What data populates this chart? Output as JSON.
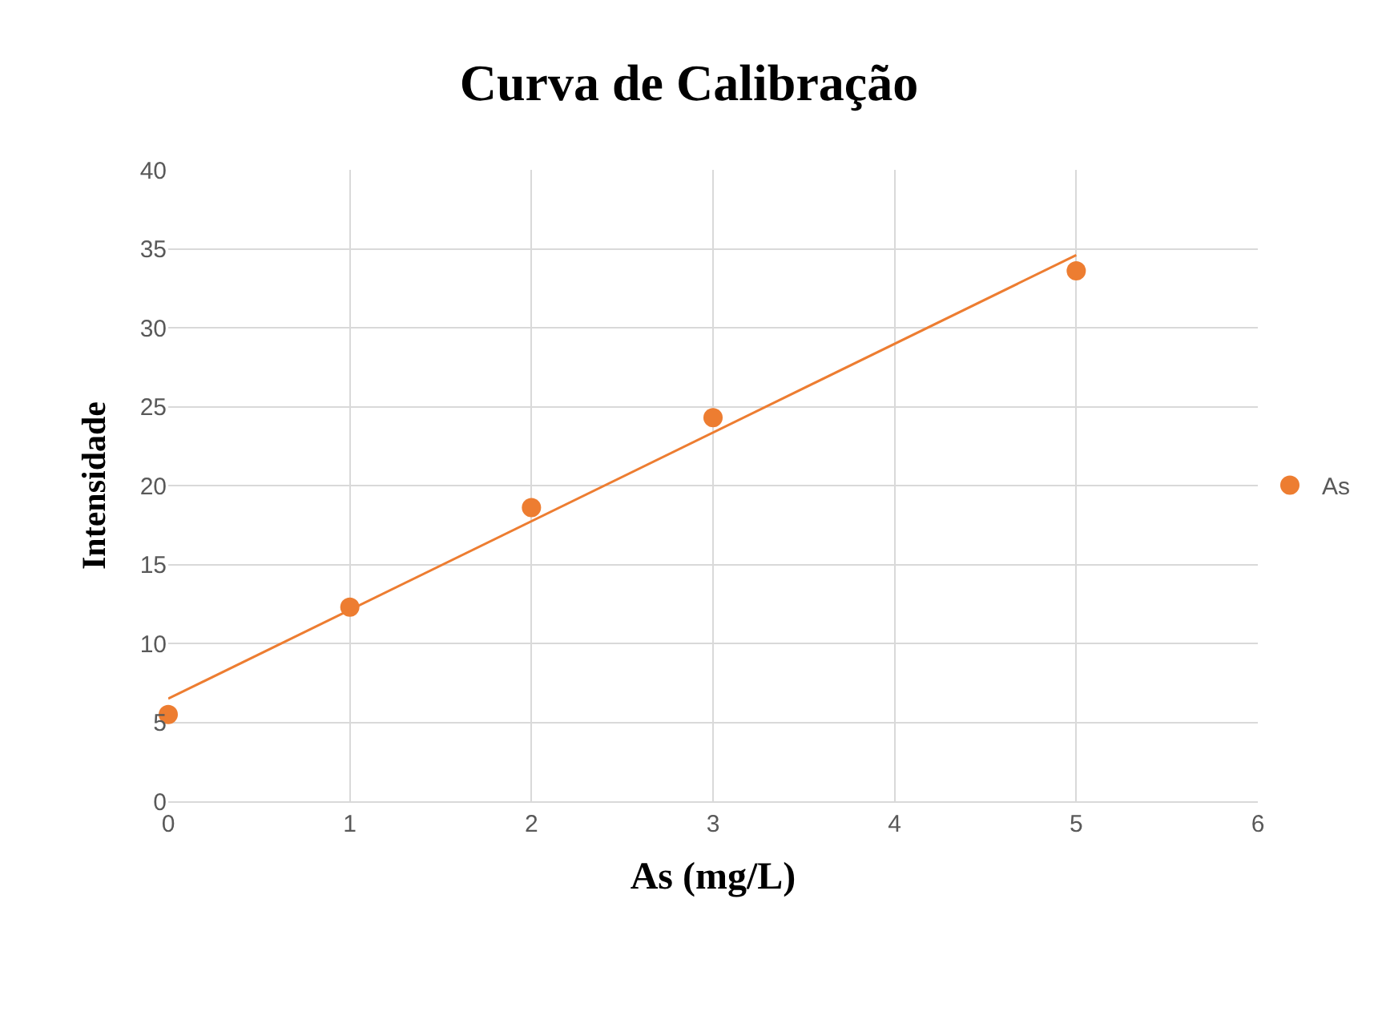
{
  "chart_data": {
    "type": "scatter",
    "title": "Curva de Calibração",
    "xlabel": "As (mg/L)",
    "ylabel": "Intensidade",
    "series": [
      {
        "name": "As",
        "color": "#ed7d31",
        "marker": "circle",
        "x": [
          0,
          1,
          2,
          3,
          5
        ],
        "values": [
          5.5,
          12.3,
          18.6,
          24.3,
          33.6
        ]
      },
      {
        "type": "line",
        "color": "#ed7d31",
        "marker": "none",
        "line_style": "solid",
        "x": [
          0,
          5
        ],
        "values": [
          6.5,
          34.6
        ]
      }
    ],
    "xlim": [
      0,
      6
    ],
    "xticks": [
      0,
      1,
      2,
      3,
      4,
      5,
      6
    ],
    "ylim": [
      0,
      40
    ],
    "yticks": [
      0,
      5,
      10,
      15,
      20,
      25,
      30,
      35,
      40
    ],
    "grid": true,
    "legend": "right"
  }
}
